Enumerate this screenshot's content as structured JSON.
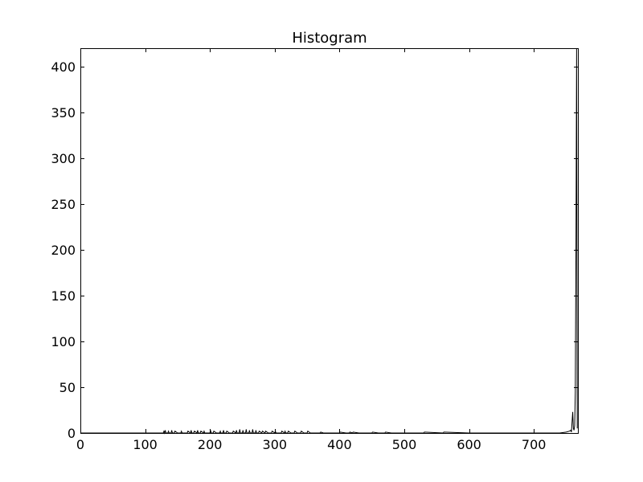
{
  "chart_data": {
    "type": "line",
    "title": "Histogram",
    "xlabel": "",
    "ylabel": "",
    "xlim": [
      0,
      768
    ],
    "ylim": [
      0,
      420
    ],
    "grid": false,
    "x_ticks": [
      0,
      100,
      200,
      300,
      400,
      500,
      600,
      700
    ],
    "y_ticks": [
      0,
      50,
      100,
      150,
      200,
      250,
      300,
      350,
      400
    ],
    "x_tick_labels": [
      "0",
      "100",
      "200",
      "300",
      "400",
      "500",
      "600",
      "700"
    ],
    "y_tick_labels": [
      "0",
      "50",
      "100",
      "150",
      "200",
      "250",
      "300",
      "350",
      "400"
    ],
    "series": [
      {
        "color": "#000000",
        "x": [
          0,
          120,
          128,
          129,
          130,
          131,
          132,
          135,
          136,
          137,
          140,
          141,
          142,
          145,
          146,
          150,
          155,
          156,
          157,
          160,
          165,
          166,
          170,
          171,
          172,
          175,
          176,
          180,
          181,
          182,
          185,
          186,
          190,
          191,
          192,
          195,
          200,
          201,
          202,
          205,
          206,
          210,
          215,
          216,
          217,
          220,
          221,
          222,
          225,
          226,
          230,
          235,
          236,
          240,
          241,
          242,
          245,
          246,
          247,
          250,
          251,
          252,
          255,
          256,
          257,
          260,
          261,
          262,
          265,
          266,
          267,
          270,
          271,
          272,
          275,
          276,
          280,
          281,
          285,
          286,
          290,
          295,
          296,
          300,
          301,
          302,
          305,
          310,
          311,
          315,
          316,
          317,
          320,
          321,
          325,
          330,
          331,
          335,
          340,
          341,
          345,
          350,
          351,
          355,
          360,
          365,
          370,
          371,
          375,
          380,
          385,
          390,
          400,
          401,
          410,
          415,
          416,
          420,
          421,
          430,
          440,
          450,
          451,
          460,
          470,
          471,
          480,
          490,
          500,
          520,
          530,
          531,
          560,
          561,
          600,
          620,
          660,
          700,
          720,
          740,
          750,
          755,
          757,
          758,
          760,
          761,
          762,
          763,
          764,
          765,
          766,
          767
        ],
        "y": [
          0,
          0,
          0,
          2,
          0,
          3,
          0,
          0,
          2,
          0,
          0,
          3,
          0,
          0,
          2,
          0,
          0,
          2,
          0,
          0,
          0,
          2,
          0,
          3,
          0,
          0,
          2,
          0,
          3,
          0,
          0,
          2,
          0,
          2,
          0,
          0,
          0,
          3,
          0,
          0,
          2,
          0,
          0,
          2,
          0,
          0,
          3,
          0,
          0,
          2,
          0,
          0,
          2,
          0,
          3,
          0,
          0,
          4,
          0,
          0,
          3,
          0,
          0,
          4,
          0,
          0,
          3,
          0,
          0,
          4,
          0,
          0,
          3,
          0,
          0,
          2,
          0,
          2,
          0,
          2,
          0,
          0,
          2,
          0,
          2,
          0,
          0,
          0,
          2,
          0,
          2,
          0,
          0,
          2,
          0,
          0,
          2,
          0,
          0,
          2,
          0,
          0,
          2,
          0,
          0,
          0,
          0,
          1,
          0,
          0,
          0,
          0,
          0,
          1,
          0,
          0,
          1,
          0,
          1,
          0,
          0,
          0,
          1,
          0,
          0,
          1,
          0,
          0,
          0,
          0,
          0,
          1,
          0,
          1,
          0,
          0,
          0,
          0,
          0,
          0,
          1,
          2,
          3,
          1,
          23,
          5,
          3,
          8,
          45,
          200,
          420,
          5
        ]
      }
    ]
  }
}
